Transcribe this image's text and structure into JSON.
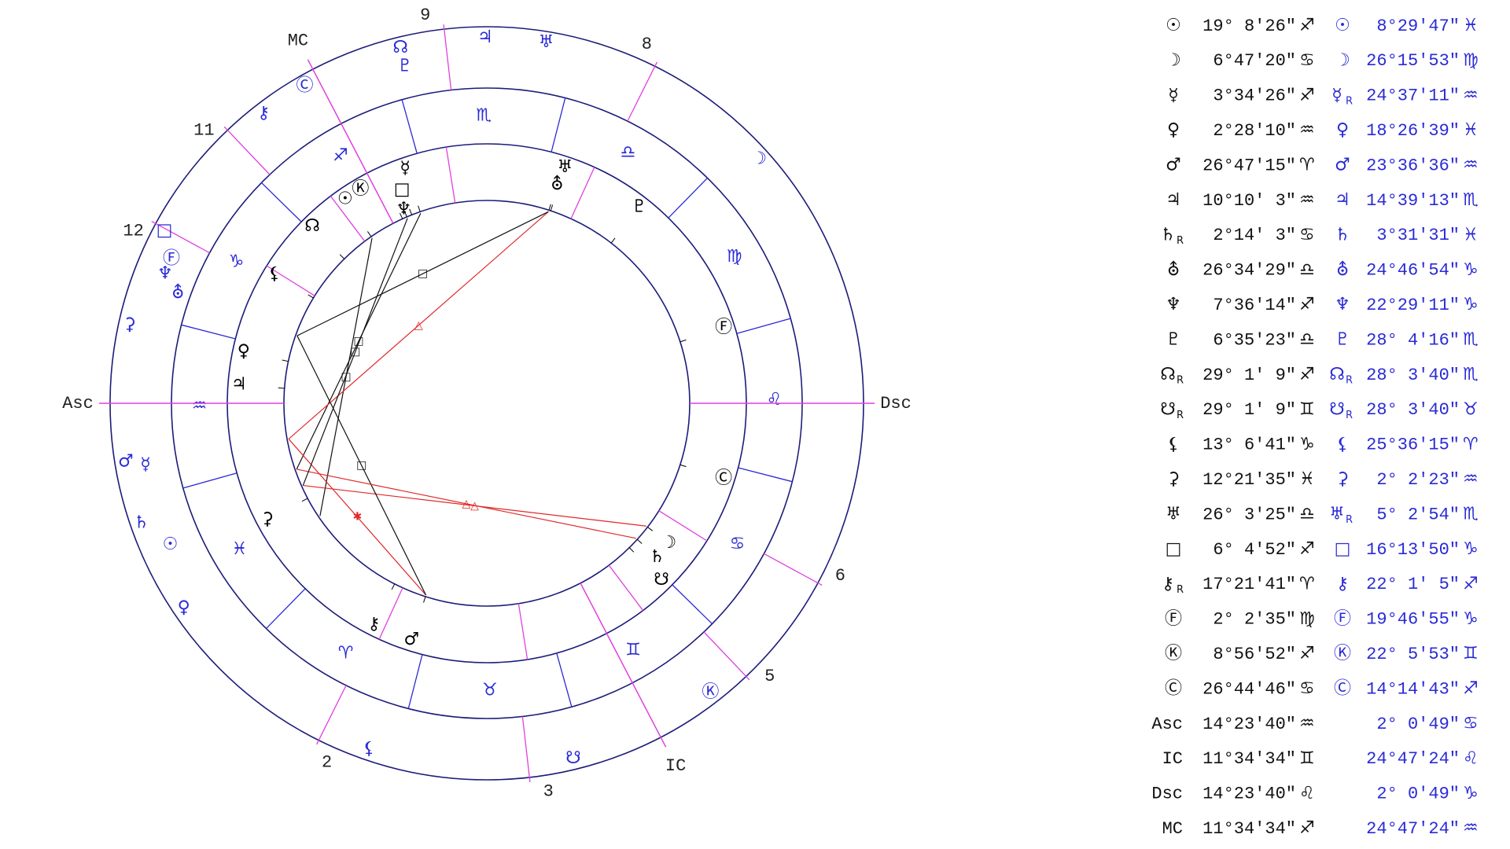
{
  "wheel": {
    "zodiac": [
      "♈",
      "♉",
      "♊",
      "♋",
      "♌",
      "♍",
      "♎",
      "♏",
      "♐",
      "♑",
      "♒",
      "♓"
    ],
    "houses": [
      "Asc",
      "2",
      "3",
      "IC",
      "5",
      "6",
      "Dsc",
      "8",
      "9",
      "MC",
      "11",
      "12"
    ]
  },
  "table": {
    "rows": [
      {
        "sym": "☉",
        "pos": "19° 8'26\"",
        "sign": "♐",
        "tsym": "☉",
        "tpos": "8°29'47\"",
        "tsign": "♓"
      },
      {
        "sym": "☽",
        "pos": "6°47'20\"",
        "sign": "♋",
        "tsym": "☽",
        "tpos": "26°15'53\"",
        "tsign": "♍"
      },
      {
        "sym": "☿",
        "pos": "3°34'26\"",
        "sign": "♐",
        "tsym": "☿",
        "tretro": "R",
        "tpos": "24°37'11\"",
        "tsign": "♒"
      },
      {
        "sym": "♀",
        "pos": "2°28'10\"",
        "sign": "♒",
        "tsym": "♀",
        "tpos": "18°26'39\"",
        "tsign": "♓"
      },
      {
        "sym": "♂",
        "pos": "26°47'15\"",
        "sign": "♈",
        "tsym": "♂",
        "tpos": "23°36'36\"",
        "tsign": "♒"
      },
      {
        "sym": "♃",
        "pos": "10°10' 3\"",
        "sign": "♒",
        "tsym": "♃",
        "tpos": "14°39'13\"",
        "tsign": "♏"
      },
      {
        "sym": "♄",
        "retro": "R",
        "pos": "2°14' 3\"",
        "sign": "♋",
        "tsym": "♄",
        "tpos": "3°31'31\"",
        "tsign": "♓"
      },
      {
        "sym": "⛢",
        "pos": "26°34'29\"",
        "sign": "♎",
        "tsym": "⛢",
        "tpos": "24°46'54\"",
        "tsign": "♑"
      },
      {
        "sym": "♆",
        "pos": "7°36'14\"",
        "sign": "♐",
        "tsym": "♆",
        "tpos": "22°29'11\"",
        "tsign": "♑"
      },
      {
        "sym": "♇",
        "pos": "6°35'23\"",
        "sign": "♎",
        "tsym": "♇",
        "tpos": "28° 4'16\"",
        "tsign": "♏"
      },
      {
        "sym": "☊",
        "retro": "R",
        "pos": "29° 1' 9\"",
        "sign": "♐",
        "tsym": "☊",
        "tretro": "R",
        "tpos": "28° 3'40\"",
        "tsign": "♏"
      },
      {
        "sym": "☋",
        "retro": "R",
        "pos": "29° 1' 9\"",
        "sign": "♊",
        "tsym": "☋",
        "tretro": "R",
        "tpos": "28° 3'40\"",
        "tsign": "♉"
      },
      {
        "sym": "⚸",
        "pos": "13° 6'41\"",
        "sign": "♑",
        "tsym": "⚸",
        "tpos": "25°36'15\"",
        "tsign": "♈"
      },
      {
        "sym": "⚳",
        "pos": "12°21'35\"",
        "sign": "♓",
        "tsym": "⚳",
        "tpos": "2° 2'23\"",
        "tsign": "♒"
      },
      {
        "sym": "♅",
        "pos": "26° 3'25\"",
        "sign": "♎",
        "tsym": "♅",
        "tretro": "R",
        "tpos": "5° 2'54\"",
        "tsign": "♏"
      },
      {
        "sym": "□",
        "pos": "6° 4'52\"",
        "sign": "♐",
        "tsym": "□",
        "tpos": "16°13'50\"",
        "tsign": "♑"
      },
      {
        "sym": "⚷",
        "retro": "R",
        "pos": "17°21'41\"",
        "sign": "♈",
        "tsym": "⚷",
        "tpos": "22° 1' 5\"",
        "tsign": "♐"
      },
      {
        "sym": "Ⓕ",
        "pos": "2° 2'35\"",
        "sign": "♍",
        "tsym": "Ⓕ",
        "tpos": "19°46'55\"",
        "tsign": "♑"
      },
      {
        "sym": "Ⓚ",
        "pos": "8°56'52\"",
        "sign": "♐",
        "tsym": "Ⓚ",
        "tpos": "22° 5'53\"",
        "tsign": "♊"
      },
      {
        "sym": "Ⓒ",
        "pos": "26°44'46\"",
        "sign": "♋",
        "tsym": "Ⓒ",
        "tpos": "14°14'43\"",
        "tsign": "♐"
      },
      {
        "sym": "Asc",
        "pos": "14°23'40\"",
        "sign": "♒",
        "tpos": "2° 0'49\"",
        "tsign": "♋"
      },
      {
        "sym": "IC",
        "pos": "11°34'34\"",
        "sign": "♊",
        "tpos": "24°47'24\"",
        "tsign": "♌"
      },
      {
        "sym": "Dsc",
        "pos": "14°23'40\"",
        "sign": "♌",
        "tpos": "2° 0'49\"",
        "tsign": "♑"
      },
      {
        "sym": "MC",
        "pos": "11°34'34\"",
        "sign": "♐",
        "tpos": "24°47'24\"",
        "tsign": "♒"
      }
    ]
  }
}
